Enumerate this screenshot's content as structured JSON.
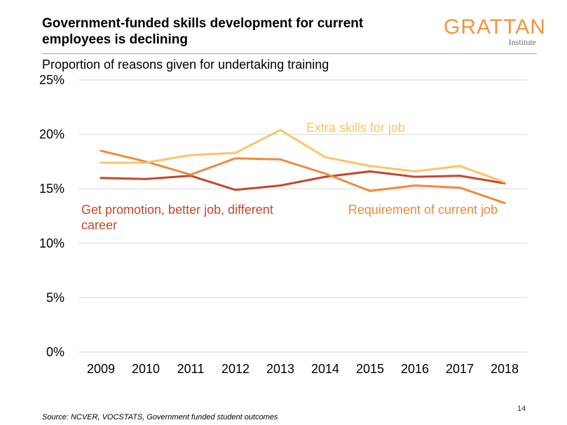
{
  "header": {
    "title": "Government-funded skills development for current employees is declining",
    "logo_main": "GRATTAN",
    "logo_sub": "Institute"
  },
  "footer": {
    "source": "Source: NCVER,  VOCSTATS, Government  funded student outcomes",
    "page_number": "14"
  },
  "colors": {
    "accent": "#f0953f",
    "series_promotion": "#c4472b",
    "series_requirement": "#ee8a3e",
    "series_extra": "#fbc564",
    "grid": "#d9d9d9"
  },
  "chart_data": {
    "type": "line",
    "title": "",
    "subtitle": "Proportion of reasons given for undertaking training",
    "xlabel": "",
    "ylabel": "",
    "x": [
      "2009",
      "2010",
      "2011",
      "2012",
      "2013",
      "2014",
      "2015",
      "2016",
      "2017",
      "2018"
    ],
    "ylim": [
      0,
      25
    ],
    "yticks": [
      0,
      5,
      10,
      15,
      20,
      25
    ],
    "ytick_labels": [
      "0%",
      "5%",
      "10%",
      "15%",
      "20%",
      "25%"
    ],
    "grid": true,
    "series": [
      {
        "name": "Get promotion, better job, different career",
        "label_lines": [
          "Get promotion, better job, different",
          "career"
        ],
        "color": "#c4472b",
        "values": [
          16.0,
          15.9,
          16.2,
          14.9,
          15.3,
          16.1,
          16.6,
          16.1,
          16.2,
          15.5
        ]
      },
      {
        "name": "Requirement of current job",
        "label_lines": [
          "Requirement of current job"
        ],
        "color": "#ee8a3e",
        "values": [
          18.5,
          17.5,
          16.3,
          17.8,
          17.7,
          16.4,
          14.8,
          15.3,
          15.1,
          13.7
        ]
      },
      {
        "name": "Extra skills for job",
        "label_lines": [
          "Extra skills for job"
        ],
        "color": "#fbc564",
        "values": [
          17.4,
          17.4,
          18.1,
          18.3,
          20.4,
          17.9,
          17.1,
          16.6,
          17.1,
          15.6
        ]
      }
    ]
  }
}
